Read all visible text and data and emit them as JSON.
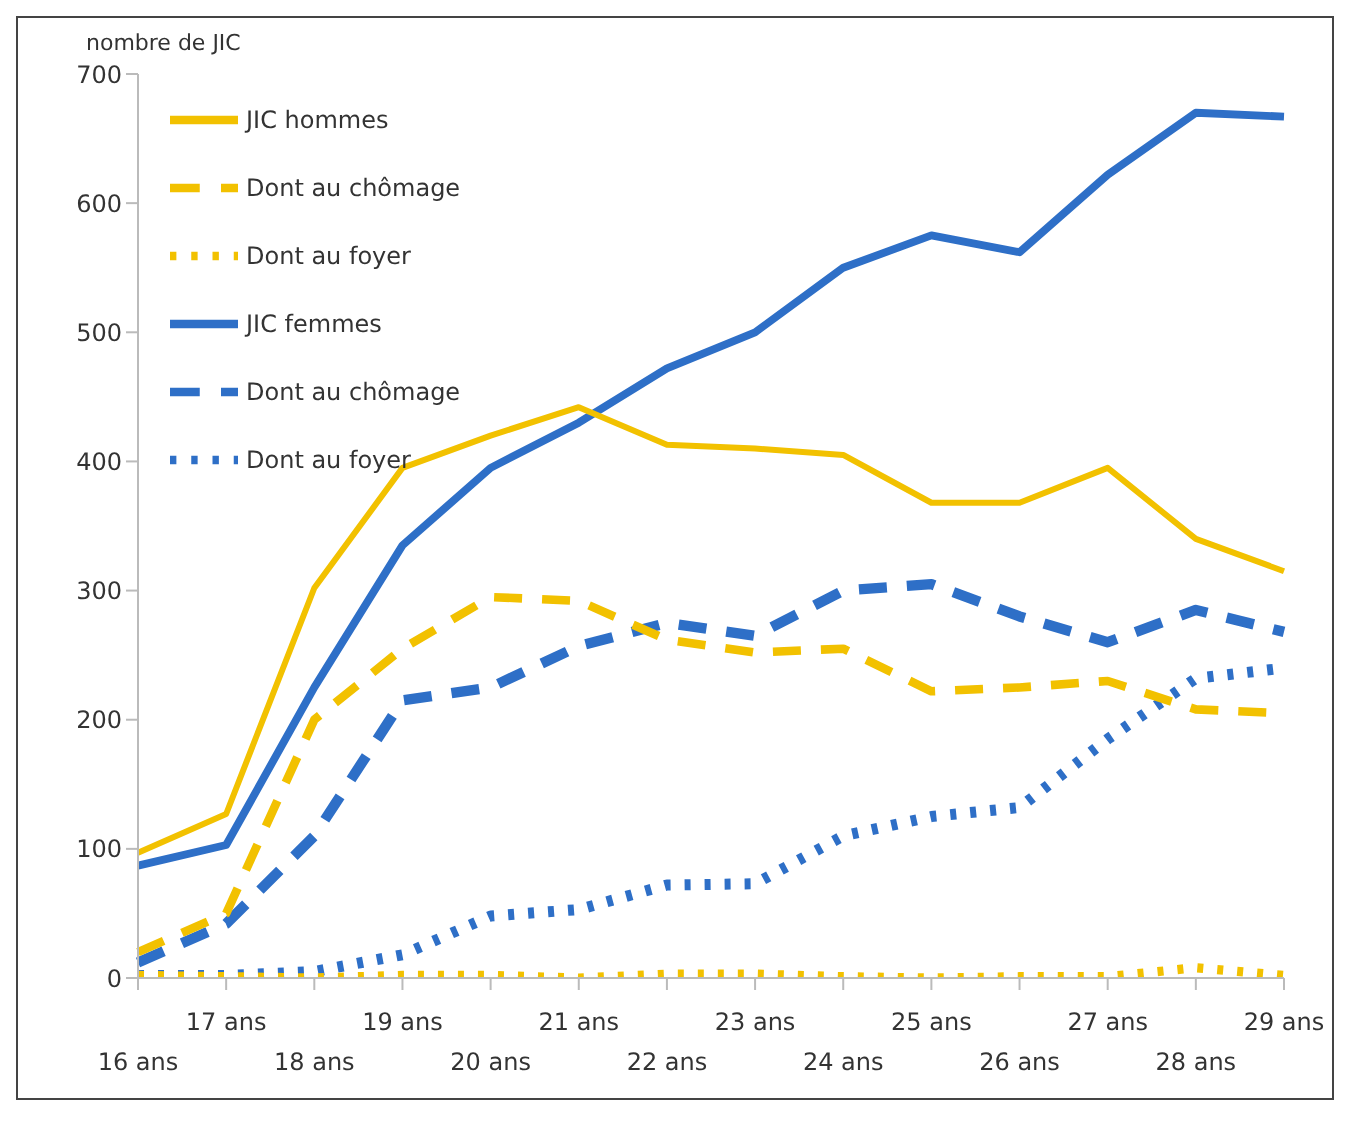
{
  "chart_data": {
    "type": "line",
    "ylabel": "nombre de JIC",
    "categories": [
      "16 ans",
      "17 ans",
      "18 ans",
      "19 ans",
      "20 ans",
      "21 ans",
      "22 ans",
      "23 ans",
      "24 ans",
      "25 ans",
      "26 ans",
      "27 ans",
      "28 ans",
      "29 ans"
    ],
    "series": [
      {
        "name": "JIC hommes",
        "color": "#f2c100",
        "line_style": "solid",
        "values": [
          97,
          127,
          302,
          395,
          420,
          442,
          413,
          410,
          405,
          368,
          368,
          395,
          340,
          315
        ]
      },
      {
        "name": "Dont au chômage",
        "color": "#f2c100",
        "line_style": "dashed",
        "values": [
          20,
          50,
          200,
          255,
          295,
          292,
          262,
          252,
          255,
          222,
          225,
          230,
          208,
          205
        ]
      },
      {
        "name": "Dont au foyer",
        "color": "#f2c100",
        "line_style": "dotted",
        "values": [
          2,
          1,
          0,
          2,
          2,
          0,
          3,
          3,
          1,
          0,
          1,
          1,
          8,
          2
        ]
      },
      {
        "name": "JIC femmes",
        "color": "#2e6fc7",
        "line_style": "solid",
        "values": [
          87,
          103,
          225,
          335,
          395,
          430,
          472,
          500,
          550,
          575,
          562,
          622,
          670,
          667
        ]
      },
      {
        "name": "Dont au chômage",
        "color": "#2e6fc7",
        "line_style": "dashed",
        "values": [
          12,
          42,
          110,
          215,
          225,
          257,
          275,
          265,
          300,
          305,
          280,
          260,
          285,
          268
        ]
      },
      {
        "name": "Dont au foyer",
        "color": "#2e6fc7",
        "line_style": "dotted",
        "values": [
          2,
          2,
          5,
          18,
          48,
          53,
          72,
          73,
          110,
          125,
          132,
          185,
          232,
          240
        ]
      }
    ],
    "ylim": [
      0,
      700
    ],
    "yticks": [
      0,
      100,
      200,
      300,
      400,
      500,
      600,
      700
    ],
    "grid": false,
    "legend": "top left",
    "marker": "none"
  }
}
